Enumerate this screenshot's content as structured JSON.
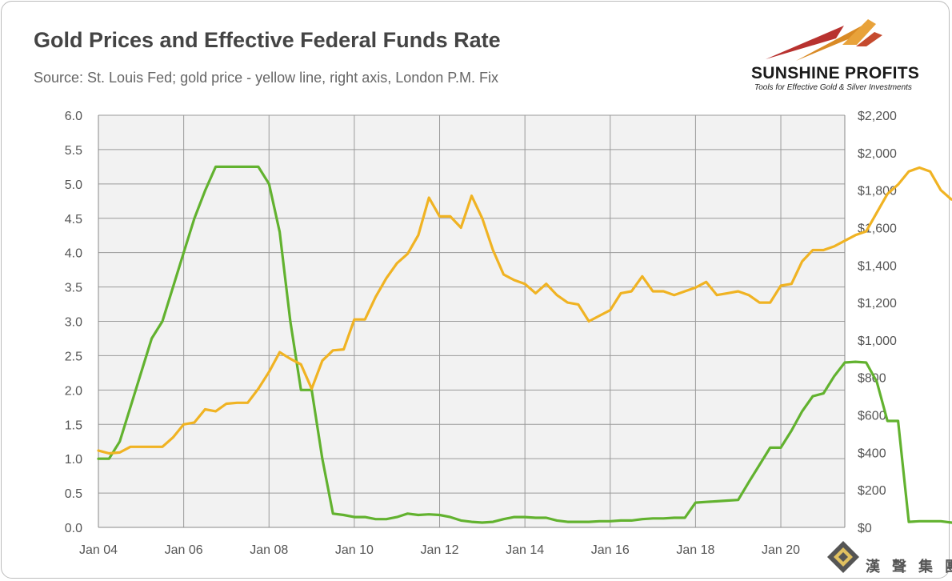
{
  "header": {
    "title": "Gold Prices and Effective Federal Funds Rate",
    "subtitle": "Source: St. Louis Fed; gold price - yellow line, right axis, London P.M. Fix"
  },
  "logo": {
    "name": "SUNSHINE PROFITS",
    "tagline": "Tools for Effective Gold & Silver Investments"
  },
  "watermark": {
    "text": "漢 聲 集 團"
  },
  "colors": {
    "fed_funds": "#62b22f",
    "gold": "#f0b323",
    "plot_bg": "#f2f2f2",
    "grid": "#9a9a9a"
  },
  "chart_data": {
    "type": "line",
    "x_start": 2004.0,
    "x_step": 0.25,
    "xlim": [
      2004.0,
      2021.5
    ],
    "x_ticks": [
      2004,
      2006,
      2008,
      2010,
      2012,
      2014,
      2016,
      2018,
      2020
    ],
    "x_tick_labels": [
      "Jan 04",
      "Jan 06",
      "Jan 08",
      "Jan 10",
      "Jan 12",
      "Jan 14",
      "Jan 16",
      "Jan 18",
      "Jan 20"
    ],
    "y_left": {
      "lim": [
        0,
        6
      ],
      "ticks": [
        0,
        0.5,
        1,
        1.5,
        2,
        2.5,
        3,
        3.5,
        4,
        4.5,
        5,
        5.5,
        6
      ],
      "tick_labels": [
        "0.0",
        "0.5",
        "1.0",
        "1.5",
        "2.0",
        "2.5",
        "3.0",
        "3.5",
        "4.0",
        "4.5",
        "5.0",
        "5.5",
        "6.0"
      ]
    },
    "y_right": {
      "lim": [
        0,
        2200
      ],
      "ticks": [
        0,
        200,
        400,
        600,
        800,
        1000,
        1200,
        1400,
        1600,
        1800,
        2000,
        2200
      ],
      "tick_labels": [
        "$0",
        "$200",
        "$400",
        "$600",
        "$800",
        "$1,000",
        "$1,200",
        "$1,400",
        "$1,600",
        "$1,800",
        "$2,000",
        "$2,200"
      ]
    },
    "grid": true,
    "series": [
      {
        "name": "Effective Federal Funds Rate",
        "axis": "left",
        "values": [
          1.0,
          1.0,
          1.25,
          1.75,
          2.25,
          2.75,
          3.0,
          3.5,
          4.0,
          4.5,
          4.9,
          5.25,
          5.25,
          5.25,
          5.25,
          5.25,
          5.0,
          4.3,
          3.0,
          2.0,
          2.0,
          1.0,
          0.2,
          0.18,
          0.15,
          0.15,
          0.12,
          0.12,
          0.15,
          0.2,
          0.18,
          0.19,
          0.18,
          0.15,
          0.1,
          0.08,
          0.07,
          0.08,
          0.12,
          0.15,
          0.15,
          0.14,
          0.14,
          0.1,
          0.08,
          0.08,
          0.08,
          0.09,
          0.09,
          0.1,
          0.1,
          0.12,
          0.13,
          0.13,
          0.14,
          0.14,
          0.36,
          0.37,
          0.38,
          0.39,
          0.4,
          0.66,
          0.91,
          1.16,
          1.16,
          1.41,
          1.69,
          1.91,
          1.95,
          2.2,
          2.4,
          2.41,
          2.4,
          2.12,
          1.55,
          1.55,
          0.08,
          0.09,
          0.09,
          0.09,
          0.07,
          0.07
        ],
        "color": "#62b22f"
      },
      {
        "name": "Gold price (London P.M. Fix)",
        "axis": "right",
        "values": [
          410,
          395,
          400,
          430,
          430,
          430,
          430,
          480,
          550,
          560,
          630,
          620,
          660,
          665,
          665,
          740,
          830,
          935,
          900,
          870,
          740,
          890,
          945,
          950,
          1110,
          1110,
          1230,
          1330,
          1410,
          1460,
          1560,
          1760,
          1660,
          1660,
          1600,
          1770,
          1650,
          1480,
          1350,
          1320,
          1300,
          1250,
          1300,
          1240,
          1200,
          1190,
          1100,
          1130,
          1160,
          1250,
          1260,
          1340,
          1260,
          1260,
          1240,
          1260,
          1280,
          1310,
          1240,
          1250,
          1260,
          1240,
          1200,
          1200,
          1290,
          1300,
          1420,
          1480,
          1480,
          1500,
          1530,
          1560,
          1580,
          1680,
          1780,
          1830,
          1900,
          1920,
          1900,
          1800,
          1750,
          1760
        ],
        "color": "#f0b323"
      }
    ]
  }
}
